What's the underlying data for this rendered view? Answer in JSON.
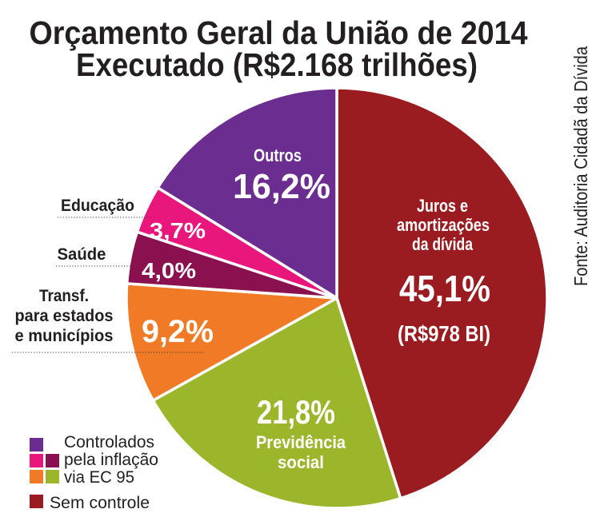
{
  "chart_data": {
    "type": "pie",
    "title": "Orçamento Geral da União de 2014",
    "subtitle": "Executado (R$2.168 trilhões)",
    "source": "Fonte: Auditoria Cidadã da Dívida",
    "slices": [
      {
        "label_lines": [
          "Juros e",
          "amortizações",
          "da dívida"
        ],
        "value": 45.1,
        "value_label": "45,1%",
        "amount_label": "(R$978 BI)",
        "color": "#9b1c20"
      },
      {
        "label_lines": [
          "Previdência",
          "social"
        ],
        "value": 21.8,
        "value_label": "21,8%",
        "color": "#9cb62b"
      },
      {
        "label_lines": [
          "Transf.",
          "para estados",
          "e municípios"
        ],
        "value": 9.2,
        "value_label": "9,2%",
        "color": "#f17a26"
      },
      {
        "label_lines": [
          "Saúde"
        ],
        "value": 4.0,
        "value_label": "4,0%",
        "color": "#8a1050"
      },
      {
        "label_lines": [
          "Educação"
        ],
        "value": 3.7,
        "value_label": "3,7%",
        "color": "#e9177b"
      },
      {
        "label_lines": [
          "Outros"
        ],
        "value": 16.2,
        "value_label": "16,2%",
        "color": "#6b2d8f"
      }
    ],
    "legend": {
      "placement": "bottom-left",
      "entries": [
        {
          "label_lines": [
            "Controlados",
            "pela inflação",
            "via EC 95"
          ],
          "swatch_rows": [
            [
              "#6b2d8f"
            ],
            [
              "#e9177b",
              "#8a1050"
            ],
            [
              "#f17a26",
              "#9cb62b"
            ]
          ]
        },
        {
          "label_lines": [
            "Sem controle"
          ],
          "swatch_rows": [
            [
              "#9b1c20"
            ]
          ]
        }
      ]
    }
  }
}
